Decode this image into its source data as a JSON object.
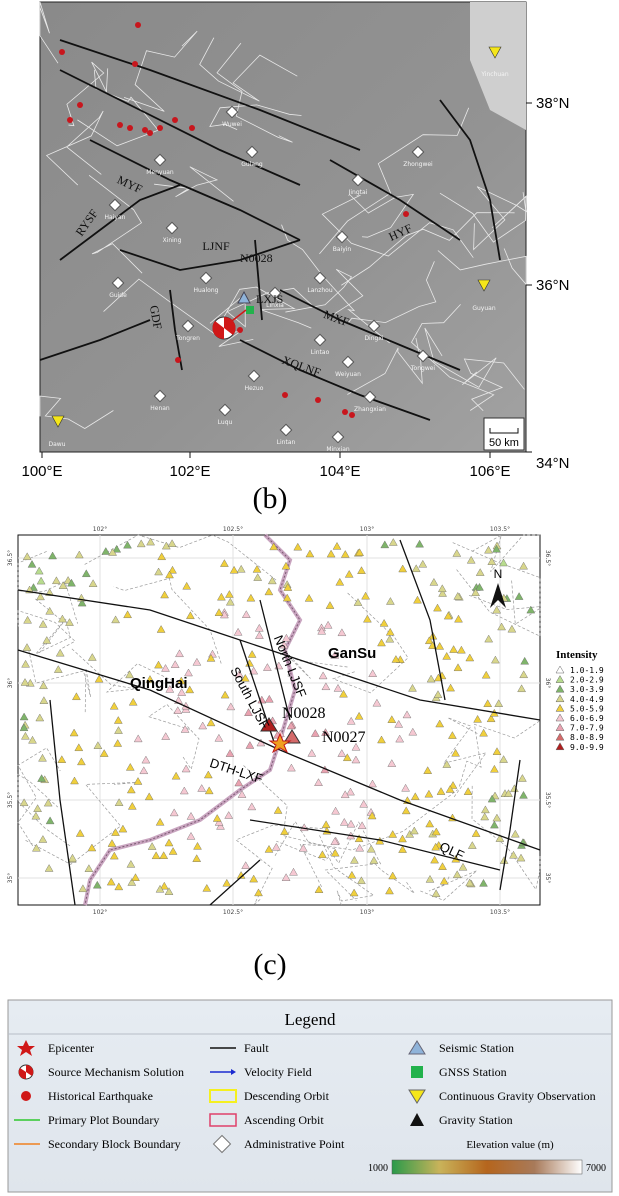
{
  "panel_b": {
    "caption": "(b)",
    "lat_labels": [
      "38°N",
      "36°N",
      "34°N"
    ],
    "lon_labels": [
      "100°E",
      "102°E",
      "104°E",
      "106°E"
    ],
    "faults": [
      "MYF",
      "RYSF",
      "LJNF",
      "GDF",
      "MXF",
      "XQLNF",
      "HYF"
    ],
    "stations": [
      "N0028",
      "LXJS"
    ],
    "scale": "50 km",
    "places": [
      "Yinchuan",
      "Wuwei",
      "Gulang",
      "Menyuan",
      "Jingtai",
      "Zhongwei",
      "Haiyan",
      "Xining",
      "Baiyin",
      "Lanzhou",
      "Guide",
      "Hualong",
      "Tongren",
      "Linxia",
      "Dingxi",
      "Lintao",
      "Weiyuan",
      "Tongwei",
      "Zhangxian",
      "Hezuo",
      "Henan",
      "Lintan",
      "Luqu",
      "Minxian",
      "Dawu",
      "Guyuan"
    ]
  },
  "panel_c": {
    "caption": "(c)",
    "lon_ticks": [
      "102°",
      "102.5°",
      "103°",
      "103.5°"
    ],
    "lat_ticks": [
      "36.5°",
      "36°",
      "35.5°",
      "35°"
    ],
    "regions": [
      "QingHai",
      "GanSu"
    ],
    "faults": [
      "South LJSF",
      "North LJSF",
      "DTH-LXF",
      "QLF"
    ],
    "stations": [
      "N0028",
      "N0027"
    ],
    "north": "N",
    "intensity": {
      "title": "Intensity",
      "classes": [
        {
          "label": "1.0-1.9",
          "color": "#ffffff"
        },
        {
          "label": "2.0-2.9",
          "color": "#b8dc8e"
        },
        {
          "label": "3.0-3.9",
          "color": "#7fb46a"
        },
        {
          "label": "4.0-4.9",
          "color": "#d8d68c"
        },
        {
          "label": "5.0-5.9",
          "color": "#f0cf3c"
        },
        {
          "label": "6.0-6.9",
          "color": "#f5c8d2"
        },
        {
          "label": "7.0-7.9",
          "color": "#e9a2b0"
        },
        {
          "label": "8.0-8.9",
          "color": "#d46a6a"
        },
        {
          "label": "9.0-9.9",
          "color": "#b01e1e"
        }
      ]
    }
  },
  "legend": {
    "title": "Legend",
    "items": [
      "Epicenter",
      "Source Mechanism Solution",
      "Historical Earthquake",
      "Primary Plot Boundary",
      "Secondary Block Boundary",
      "Fault",
      "Velocity Field",
      "Descending Orbit",
      "Ascending Orbit",
      "Administrative Point",
      "Seismic Station",
      "GNSS Station",
      "Continuous Gravity Observation",
      "Gravity Station"
    ],
    "elevation": {
      "title": "Elevation value (m)",
      "min": 1000,
      "max": 7000
    }
  }
}
